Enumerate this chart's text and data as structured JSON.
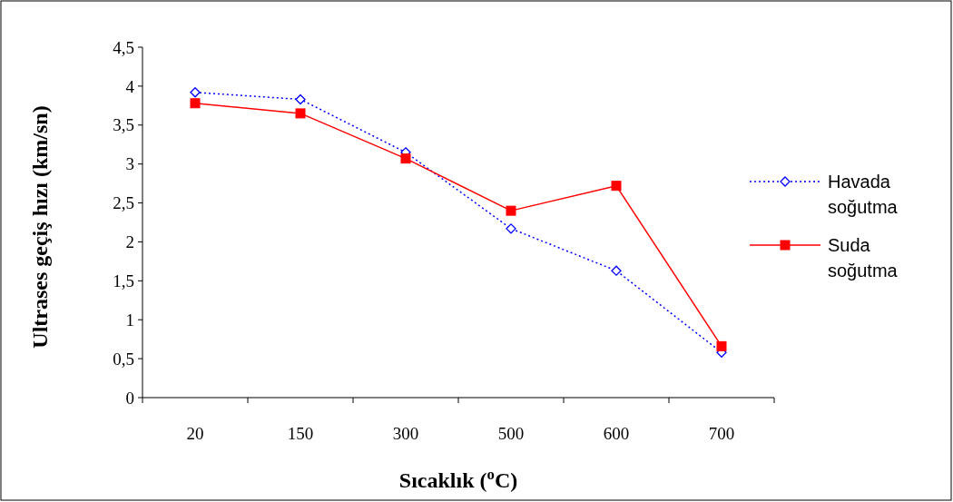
{
  "chart_data": {
    "type": "line",
    "xlabel": "Sıcaklık ($^{o}$C)",
    "ylabel": "Ultrases geçiş hızı (km/sn)",
    "categories": [
      "20",
      "150",
      "300",
      "500",
      "600",
      "700"
    ],
    "ylim": [
      0,
      4.5
    ],
    "yticks": [
      0,
      {
        "value": 0.5,
        "label": "0,5"
      },
      1,
      {
        "value": 1.5,
        "label": "1,5"
      },
      2,
      {
        "value": 2.5,
        "label": "2,5"
      },
      3,
      {
        "value": 3.5,
        "label": "3,5"
      },
      4,
      {
        "value": 4.5,
        "label": "4,5"
      }
    ],
    "grid": false,
    "legend": "right",
    "series": [
      {
        "name": "Havada soğutma",
        "color": "#0000ff",
        "marker": "diamond",
        "line_style": "dotted",
        "values": [
          3.92,
          3.83,
          3.15,
          2.17,
          1.63,
          0.58
        ]
      },
      {
        "name": "Suda soğutma",
        "color": "#ff0000",
        "marker": "square",
        "line_style": "solid",
        "values": [
          3.78,
          3.65,
          3.07,
          2.4,
          2.72,
          0.66
        ]
      }
    ]
  }
}
